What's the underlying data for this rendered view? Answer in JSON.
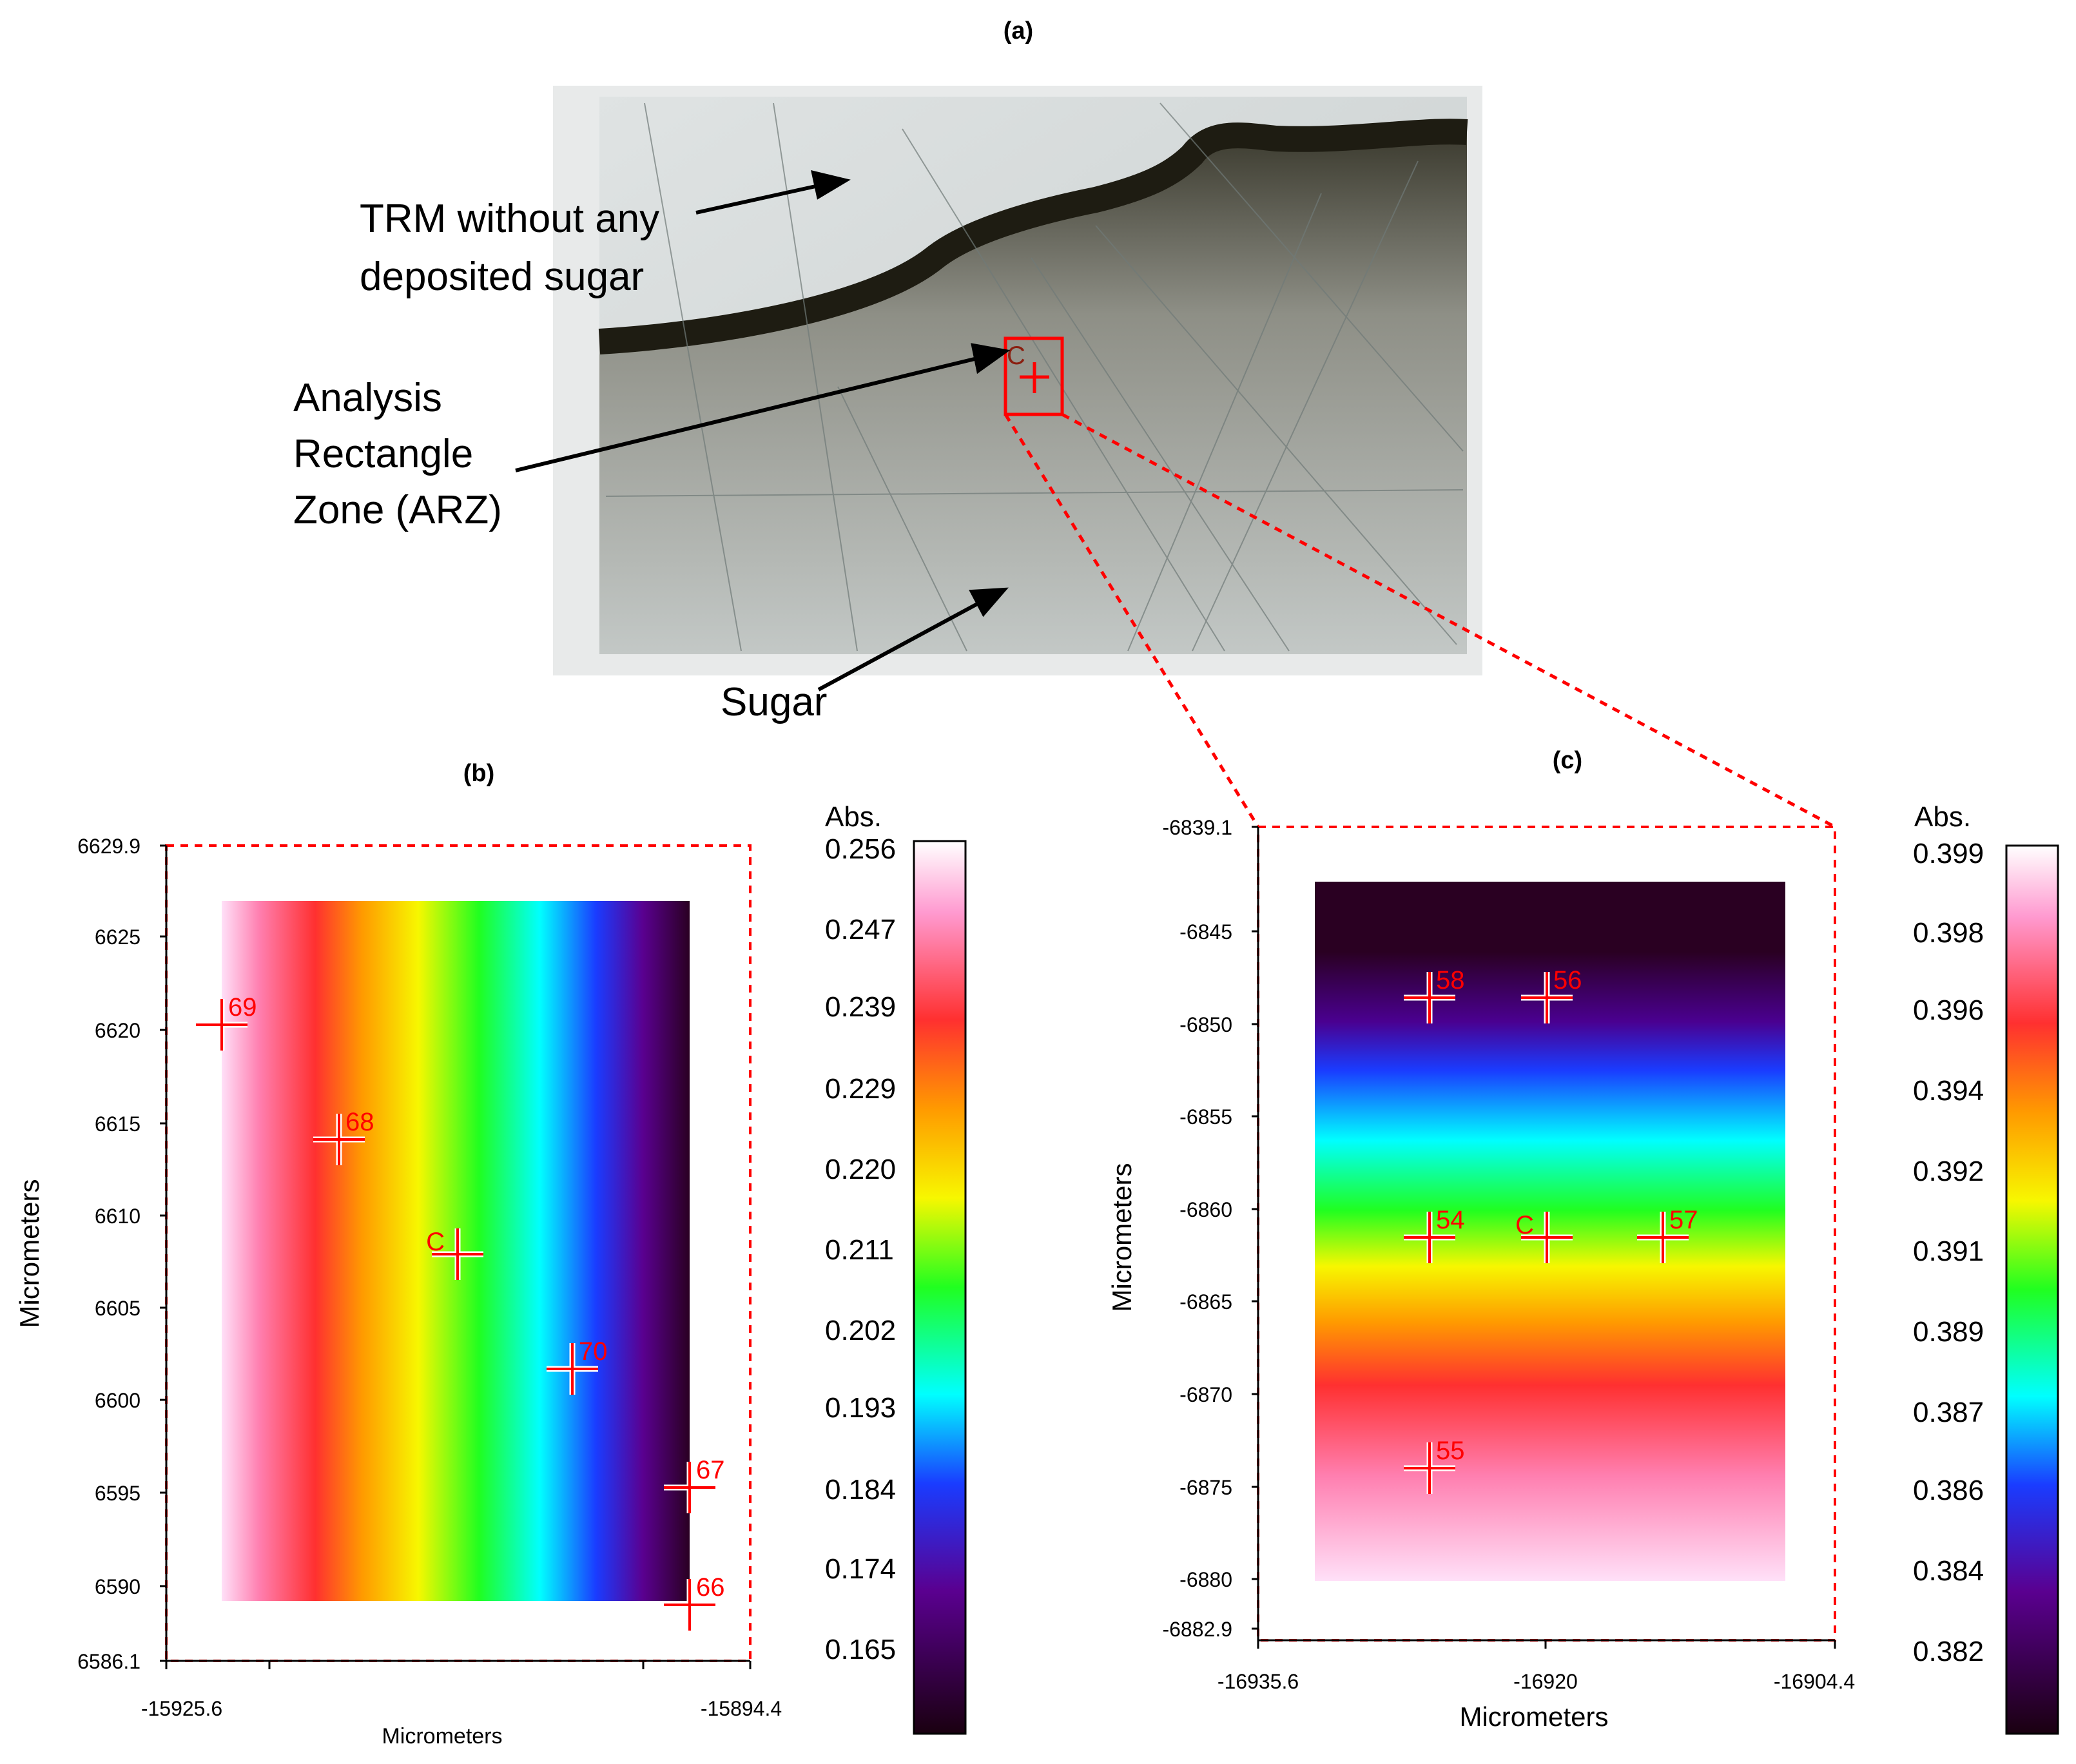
{
  "figure": {
    "panels": {
      "a": {
        "label": "(a)",
        "annotations": {
          "trm": [
            "TRM without any",
            "deposited sugar"
          ],
          "arz": [
            "Analysis",
            "Rectangle",
            "Zone (ARZ)"
          ],
          "sugar": "Sugar"
        },
        "marker_label": "C"
      },
      "b": {
        "label": "(b)",
        "ylabel": "Micrometers",
        "xlabel": "Micrometers",
        "y_ticks": [
          "6629.9",
          "6625",
          "6620",
          "6615",
          "6610",
          "6605",
          "6600",
          "6595",
          "6590",
          "6586.1"
        ],
        "x_ticks": [
          "-15925.6",
          "-15894.4"
        ],
        "colorbar_title": "Abs.",
        "colorbar_ticks": [
          "0.256",
          "0.247",
          "0.239",
          "0.229",
          "0.220",
          "0.211",
          "0.202",
          "0.193",
          "0.184",
          "0.174",
          "0.165"
        ],
        "points": [
          "69",
          "68",
          "C",
          "70",
          "67",
          "66"
        ]
      },
      "c": {
        "label": "(c)",
        "ylabel": "Micrometers",
        "xlabel": "Micrometers",
        "y_ticks": [
          "-6839.1",
          "-6845",
          "-6850",
          "-6855",
          "-6860",
          "-6865",
          "-6870",
          "-6875",
          "-6880",
          "-6882.9"
        ],
        "x_ticks": [
          "-16935.6",
          "-16920",
          "-16904.4"
        ],
        "colorbar_title": "Abs.",
        "colorbar_ticks": [
          "0.399",
          "0.398",
          "0.396",
          "0.394",
          "0.392",
          "0.391",
          "0.389",
          "0.387",
          "0.386",
          "0.384",
          "0.382"
        ],
        "points": [
          "58",
          "56",
          "54",
          "C",
          "57",
          "55"
        ]
      }
    },
    "colors": {
      "marker": "#ff0000",
      "outline": "#ff0000"
    }
  }
}
